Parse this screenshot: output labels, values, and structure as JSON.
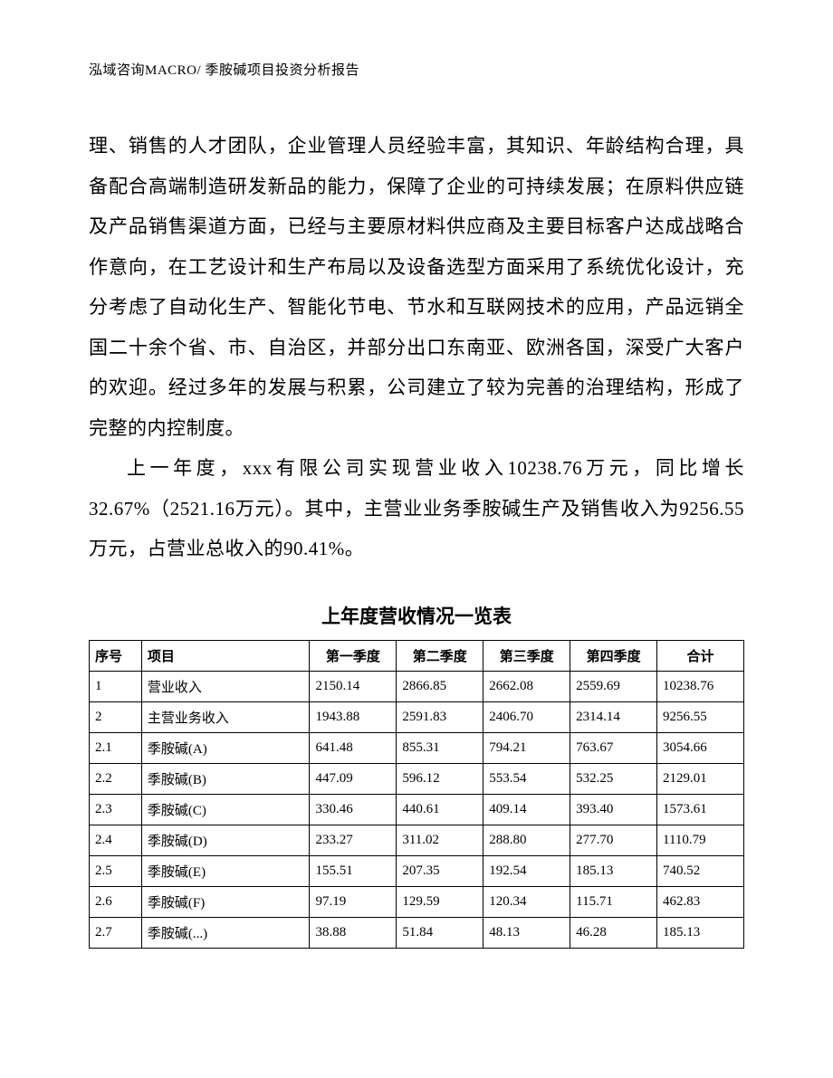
{
  "header": {
    "left": "泓域咨询MACRO/",
    "right": "季胺碱项目投资分析报告"
  },
  "paragraphs": {
    "p1": "理、销售的人才团队，企业管理人员经验丰富，其知识、年龄结构合理，具备配合高端制造研发新品的能力，保障了企业的可持续发展；在原料供应链及产品销售渠道方面，已经与主要原材料供应商及主要目标客户达成战略合作意向，在工艺设计和生产布局以及设备选型方面采用了系统优化设计，充分考虑了自动化生产、智能化节电、节水和互联网技术的应用，产品远销全国二十余个省、市、自治区，并部分出口东南亚、欧洲各国，深受广大客户的欢迎。经过多年的发展与积累，公司建立了较为完善的治理结构，形成了完整的内控制度。",
    "p2": "上一年度，xxx有限公司实现营业收入10238.76万元，同比增长32.67%（2521.16万元）。其中，主营业业务季胺碱生产及销售收入为9256.55万元，占营业总收入的90.41%。"
  },
  "table": {
    "title": "上年度营收情况一览表",
    "columns": [
      "序号",
      "项目",
      "第一季度",
      "第二季度",
      "第三季度",
      "第四季度",
      "合计"
    ],
    "rows": [
      [
        "1",
        "营业收入",
        "2150.14",
        "2866.85",
        "2662.08",
        "2559.69",
        "10238.76"
      ],
      [
        "2",
        "主营业务收入",
        "1943.88",
        "2591.83",
        "2406.70",
        "2314.14",
        "9256.55"
      ],
      [
        "2.1",
        "季胺碱(A)",
        "641.48",
        "855.31",
        "794.21",
        "763.67",
        "3054.66"
      ],
      [
        "2.2",
        "季胺碱(B)",
        "447.09",
        "596.12",
        "553.54",
        "532.25",
        "2129.01"
      ],
      [
        "2.3",
        "季胺碱(C)",
        "330.46",
        "440.61",
        "409.14",
        "393.40",
        "1573.61"
      ],
      [
        "2.4",
        "季胺碱(D)",
        "233.27",
        "311.02",
        "288.80",
        "277.70",
        "1110.79"
      ],
      [
        "2.5",
        "季胺碱(E)",
        "155.51",
        "207.35",
        "192.54",
        "185.13",
        "740.52"
      ],
      [
        "2.6",
        "季胺碱(F)",
        "97.19",
        "129.59",
        "120.34",
        "115.71",
        "462.83"
      ],
      [
        "2.7",
        "季胺碱(...)",
        "38.88",
        "51.84",
        "48.13",
        "46.28",
        "185.13"
      ]
    ]
  }
}
